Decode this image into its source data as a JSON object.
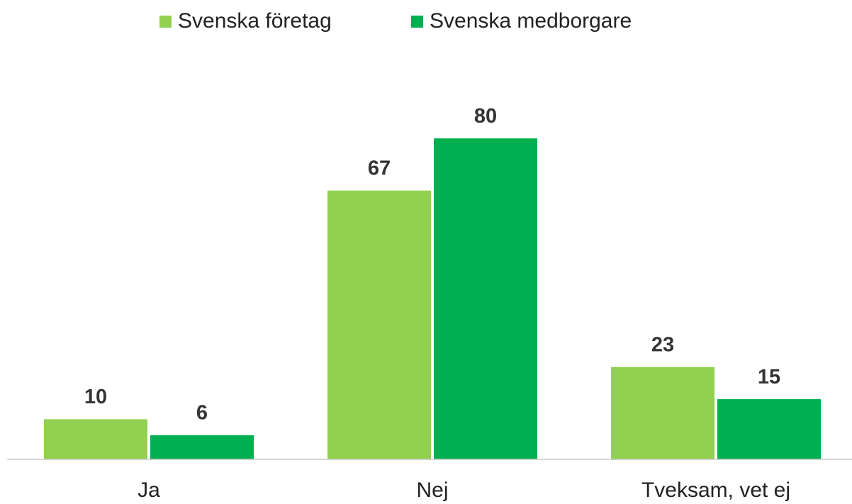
{
  "chart_data": {
    "type": "bar",
    "categories": [
      "Ja",
      "Nej",
      "Tveksam, vet ej"
    ],
    "series": [
      {
        "name": "Svenska företag",
        "color": "#92d050",
        "values": [
          10,
          67,
          23
        ]
      },
      {
        "name": "Svenska medborgare",
        "color": "#00b050",
        "values": [
          6,
          80,
          15
        ]
      }
    ],
    "ylim": [
      0,
      100
    ],
    "legend": "top"
  }
}
